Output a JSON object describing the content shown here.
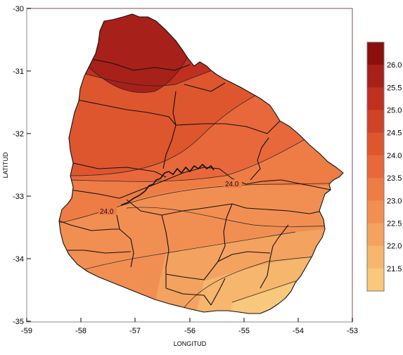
{
  "map": {
    "xlabel": "LONGITUD",
    "ylabel": "LATITUD",
    "x_ticks": [
      "-59",
      "-58",
      "-57",
      "-56",
      "-55",
      "-54",
      "-53"
    ],
    "y_ticks": [
      "-30",
      "-31",
      "-32",
      "-33",
      "-34",
      "-35"
    ],
    "contour_labels": [
      "24.0",
      "24.0"
    ]
  },
  "colorbar": {
    "levels": [
      "26.0",
      "25.5",
      "25.0",
      "24.5",
      "24.0",
      "23.5",
      "23.0",
      "22.5",
      "22.0",
      "21.5"
    ],
    "colors": [
      "#8b0f0c",
      "#a8201a",
      "#c0301f",
      "#cf4427",
      "#de562e",
      "#e8683b",
      "#ee7c45",
      "#f18f52",
      "#f4a25f",
      "#f6b66d",
      "#f8c87c"
    ]
  }
}
